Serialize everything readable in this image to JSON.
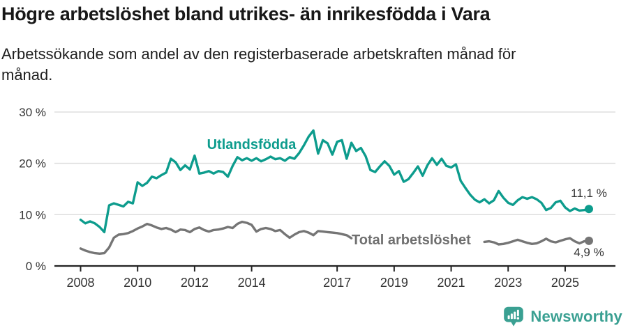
{
  "header": {
    "title": "Högre arbetslöshet bland utrikes- än inrikesfödda i Vara",
    "subtitle": "Arbetssökande som andel av den registerbaserade arbetskraften månad för månad."
  },
  "colors": {
    "foreign_born": "#0d9c8d",
    "total": "#757575",
    "grid": "#dcdcdc",
    "axis": "#222222",
    "tick_label": "#333333",
    "annotation_text": "#333333",
    "brand_teal": "#3aa092"
  },
  "chart_data": {
    "type": "line",
    "title": "Högre arbetslöshet bland utrikes- än inrikesfödda i Vara",
    "subtitle": "Arbetssökande som andel av den registerbaserade arbetskraften månad för månad.",
    "x_start": 2008,
    "x_step_years": 0.1666667,
    "x_unit": "year (monthly data)",
    "y_unit": "%",
    "ylim": [
      0,
      30
    ],
    "yticks": [
      0,
      10,
      20,
      30
    ],
    "ytick_labels": [
      "0 %",
      "10 %",
      "20 %",
      "30 %"
    ],
    "xticks": [
      2008,
      2010,
      2012,
      2014,
      2017,
      2019,
      2021,
      2023,
      2025
    ],
    "grid": "horizontal",
    "legend_position": "inline-labels",
    "series": [
      {
        "id": "utlandsfodda",
        "name": "Utlandsfödda",
        "color_key": "foreign_born",
        "end_value": 11.1,
        "end_label": "11,1 %",
        "values": [
          9.0,
          8.3,
          8.7,
          8.3,
          7.6,
          6.6,
          11.8,
          12.2,
          11.9,
          11.6,
          12.5,
          12.2,
          16.3,
          15.6,
          16.2,
          17.4,
          17.1,
          17.7,
          18.2,
          20.9,
          20.2,
          18.7,
          19.6,
          18.8,
          21.5,
          18.0,
          18.2,
          18.5,
          18.0,
          18.5,
          18.3,
          17.4,
          19.5,
          21.2,
          20.6,
          21.0,
          20.5,
          21.0,
          20.4,
          20.8,
          21.3,
          20.8,
          21.0,
          20.5,
          21.2,
          20.9,
          22.0,
          23.5,
          25.2,
          26.4,
          21.9,
          24.5,
          23.9,
          21.7,
          24.2,
          24.5,
          20.9,
          24.0,
          22.4,
          23.0,
          21.4,
          18.7,
          18.3,
          19.4,
          20.4,
          19.5,
          17.8,
          18.5,
          16.4,
          16.9,
          18.1,
          19.4,
          17.6,
          19.6,
          21.0,
          19.7,
          20.9,
          19.5,
          19.2,
          19.8,
          16.6,
          15.2,
          13.9,
          12.9,
          12.4,
          13.0,
          12.2,
          12.8,
          14.6,
          13.3,
          12.3,
          11.9,
          12.8,
          13.4,
          13.1,
          13.4,
          13.0,
          12.3,
          10.9,
          11.3,
          12.4,
          12.7,
          11.4,
          10.7,
          11.2,
          10.8,
          10.9,
          11.1
        ]
      },
      {
        "id": "total",
        "name": "Total arbetslöshet",
        "color_key": "total",
        "end_value": 4.9,
        "end_label": "4,9 %",
        "values": [
          3.4,
          3.0,
          2.7,
          2.5,
          2.4,
          2.5,
          3.6,
          5.5,
          6.1,
          6.2,
          6.4,
          6.8,
          7.3,
          7.7,
          8.2,
          7.9,
          7.5,
          7.2,
          7.4,
          7.1,
          6.6,
          7.1,
          7.0,
          6.6,
          7.2,
          7.5,
          7.0,
          6.7,
          7.0,
          7.1,
          7.3,
          7.6,
          7.4,
          8.2,
          8.6,
          8.4,
          8.0,
          6.7,
          7.2,
          7.4,
          7.2,
          6.8,
          7.0,
          6.2,
          5.5,
          6.1,
          6.6,
          6.8,
          6.5,
          6.0,
          6.8,
          6.7,
          6.6,
          6.5,
          6.4,
          6.2,
          6.0,
          5.4,
          null,
          null,
          null,
          null,
          null,
          null,
          null,
          null,
          null,
          null,
          null,
          null,
          null,
          null,
          null,
          null,
          null,
          null,
          null,
          null,
          null,
          null,
          null,
          null,
          null,
          null,
          null,
          4.7,
          4.8,
          4.6,
          4.2,
          4.3,
          4.5,
          4.8,
          5.1,
          4.8,
          4.5,
          4.3,
          4.4,
          4.8,
          5.3,
          4.8,
          4.6,
          4.9,
          5.2,
          5.4,
          4.8,
          4.4,
          4.8,
          4.9
        ]
      }
    ]
  },
  "footer": {
    "brand": "Newsworthy"
  }
}
